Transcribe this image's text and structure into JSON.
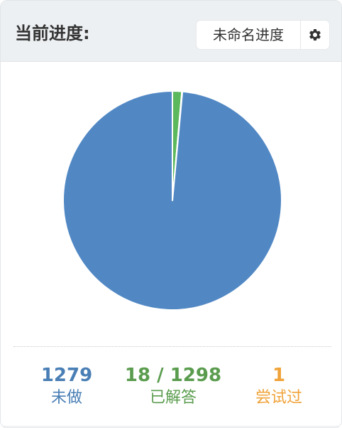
{
  "header": {
    "title": "当前进度:",
    "session_name": "未命名进度",
    "settings_icon": "gear-icon"
  },
  "chart_data": {
    "type": "pie",
    "total": 1298,
    "series": [
      {
        "name": "已解答",
        "value": 18,
        "color": "#5cb85c"
      },
      {
        "name": "尝试过",
        "value": 1,
        "color": "#f0ad4e"
      },
      {
        "name": "未做",
        "value": 1279,
        "color": "#5188c4"
      }
    ]
  },
  "stats": {
    "todo": {
      "value": "1279",
      "label": "未做",
      "color": "#4a7fb5"
    },
    "solved": {
      "value": "18 / 1298",
      "label": "已解答",
      "color": "#5a9c4e"
    },
    "attempted": {
      "value": "1",
      "label": "尝试过",
      "color": "#f0a33a"
    }
  }
}
